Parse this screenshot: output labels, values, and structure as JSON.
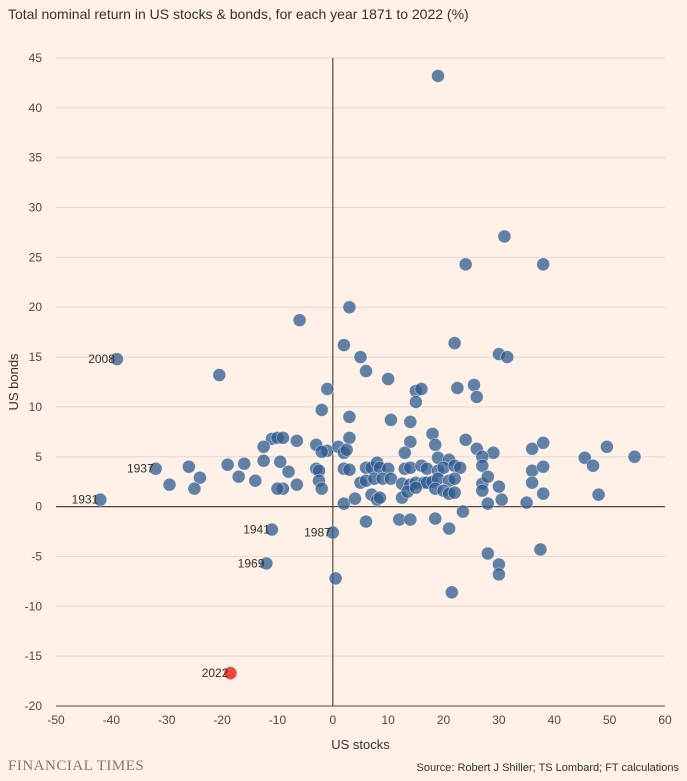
{
  "title": "Total nominal return in US stocks & bonds, for each year 1871 to 2022 (%)",
  "footer": {
    "brand": "FINANCIAL TIMES",
    "source": "Source: Robert J Shiller; TS Lombard; FT calculations"
  },
  "colors": {
    "point": "#2c5a8f",
    "highlight": "#f03c33",
    "background": "#fff1e5",
    "grid": "#e3d9cf",
    "zero_line": "#4d4845"
  },
  "chart_data": {
    "type": "scatter",
    "title": "Total nominal return in US stocks & bonds, for each year 1871 to 2022 (%)",
    "xlabel": "US stocks",
    "ylabel": "US bonds",
    "xlim": [
      -50,
      60
    ],
    "ylim": [
      -20,
      45
    ],
    "xticks": [
      -50,
      -40,
      -30,
      -20,
      -10,
      0,
      10,
      20,
      30,
      40,
      50,
      60
    ],
    "yticks": [
      -20,
      -15,
      -10,
      -5,
      0,
      5,
      10,
      15,
      20,
      25,
      30,
      35,
      40,
      45
    ],
    "grid": "horizontal",
    "labeled_points": [
      {
        "label": "2008",
        "x": -39,
        "y": 14.8
      },
      {
        "label": "1937",
        "x": -32,
        "y": 3.8
      },
      {
        "label": "1931",
        "x": -42,
        "y": 0.7
      },
      {
        "label": "1941",
        "x": -11,
        "y": -2.3
      },
      {
        "label": "1969",
        "x": -12,
        "y": -5.7
      },
      {
        "label": "1987",
        "x": 0,
        "y": -2.6
      },
      {
        "label": "2022",
        "x": -18.5,
        "y": -16.7,
        "highlight": true
      }
    ],
    "points": [
      [
        19,
        43.2
      ],
      [
        31,
        27.1
      ],
      [
        24,
        24.3
      ],
      [
        38,
        24.3
      ],
      [
        3,
        20
      ],
      [
        -6,
        18.7
      ],
      [
        2,
        16.2
      ],
      [
        22,
        16.4
      ],
      [
        30,
        15.3
      ],
      [
        31.5,
        15
      ],
      [
        5,
        15
      ],
      [
        -20.5,
        13.2
      ],
      [
        6,
        13.6
      ],
      [
        10,
        12.8
      ],
      [
        25.5,
        12.2
      ],
      [
        -1,
        11.8
      ],
      [
        15,
        11.6
      ],
      [
        16,
        11.8
      ],
      [
        22.5,
        11.9
      ],
      [
        15,
        10.5
      ],
      [
        26,
        11
      ],
      [
        -2,
        9.7
      ],
      [
        3,
        9
      ],
      [
        10.5,
        8.7
      ],
      [
        14,
        8.5
      ],
      [
        18,
        7.3
      ],
      [
        3,
        6.9
      ],
      [
        -11,
        6.8
      ],
      [
        -10,
        6.9
      ],
      [
        -9,
        6.9
      ],
      [
        -6.5,
        6.6
      ],
      [
        -3,
        6.2
      ],
      [
        -12.5,
        6
      ],
      [
        -1,
        5.6
      ],
      [
        -2,
        5.5
      ],
      [
        1,
        6
      ],
      [
        2,
        5.4
      ],
      [
        2.5,
        5.7
      ],
      [
        14,
        6.5
      ],
      [
        18.5,
        6.2
      ],
      [
        24,
        6.7
      ],
      [
        26,
        5.8
      ],
      [
        29,
        5.4
      ],
      [
        13,
        5.4
      ],
      [
        19,
        4.9
      ],
      [
        27,
        5
      ],
      [
        21,
        4.7
      ],
      [
        36,
        5.8
      ],
      [
        38,
        6.4
      ],
      [
        45.5,
        4.9
      ],
      [
        49.5,
        6
      ],
      [
        54.5,
        5
      ],
      [
        47,
        4.1
      ],
      [
        -12.5,
        4.6
      ],
      [
        -16,
        4.3
      ],
      [
        -19,
        4.2
      ],
      [
        -26,
        4
      ],
      [
        -9.5,
        4.5
      ],
      [
        -8,
        3.5
      ],
      [
        -3,
        3.8
      ],
      [
        -2.5,
        3.6
      ],
      [
        2,
        3.8
      ],
      [
        3,
        3.7
      ],
      [
        6,
        3.9
      ],
      [
        7,
        3.9
      ],
      [
        8,
        4.4
      ],
      [
        8.5,
        3.9
      ],
      [
        10,
        3.8
      ],
      [
        13,
        3.8
      ],
      [
        14,
        3.9
      ],
      [
        16,
        4.1
      ],
      [
        17,
        3.8
      ],
      [
        19,
        3.6
      ],
      [
        20,
        3.9
      ],
      [
        22,
        4.1
      ],
      [
        23,
        3.9
      ],
      [
        27,
        4.1
      ],
      [
        36,
        3.6
      ],
      [
        38,
        4
      ],
      [
        -17,
        3
      ],
      [
        -14,
        2.6
      ],
      [
        -24,
        2.9
      ],
      [
        -29.5,
        2.2
      ],
      [
        -25,
        1.8
      ],
      [
        -6.5,
        2.2
      ],
      [
        -9,
        1.8
      ],
      [
        -10,
        1.8
      ],
      [
        -2.5,
        2.6
      ],
      [
        -2,
        1.8
      ],
      [
        5,
        2.4
      ],
      [
        6,
        2.6
      ],
      [
        7.5,
        2.8
      ],
      [
        9,
        2.8
      ],
      [
        10.5,
        2.8
      ],
      [
        12.5,
        2.3
      ],
      [
        14,
        2.2
      ],
      [
        15,
        2.4
      ],
      [
        16.5,
        2.4
      ],
      [
        17,
        2.4
      ],
      [
        18,
        2.5
      ],
      [
        19,
        2.8
      ],
      [
        21,
        2.6
      ],
      [
        22,
        2.8
      ],
      [
        27,
        2.3
      ],
      [
        28,
        3
      ],
      [
        30,
        2
      ],
      [
        36,
        2.4
      ],
      [
        7,
        1.2
      ],
      [
        8,
        0.7
      ],
      [
        8.5,
        0.9
      ],
      [
        12.5,
        0.9
      ],
      [
        13.5,
        1.5
      ],
      [
        15,
        1.9
      ],
      [
        18.5,
        1.8
      ],
      [
        20,
        1.6
      ],
      [
        21,
        1.3
      ],
      [
        22,
        1.4
      ],
      [
        27,
        1.6
      ],
      [
        30.5,
        0.7
      ],
      [
        35,
        0.4
      ],
      [
        38,
        1.3
      ],
      [
        48,
        1.2
      ],
      [
        2,
        0.3
      ],
      [
        4,
        0.8
      ],
      [
        28,
        0.3
      ],
      [
        6,
        -1.5
      ],
      [
        12,
        -1.3
      ],
      [
        14,
        -1.3
      ],
      [
        18.5,
        -1.2
      ],
      [
        21,
        -2.2
      ],
      [
        23.5,
        -0.5
      ],
      [
        28,
        -4.7
      ],
      [
        30,
        -5.8
      ],
      [
        30,
        -6.8
      ],
      [
        37.5,
        -4.3
      ],
      [
        0.5,
        -7.2
      ],
      [
        21.5,
        -8.6
      ]
    ]
  }
}
